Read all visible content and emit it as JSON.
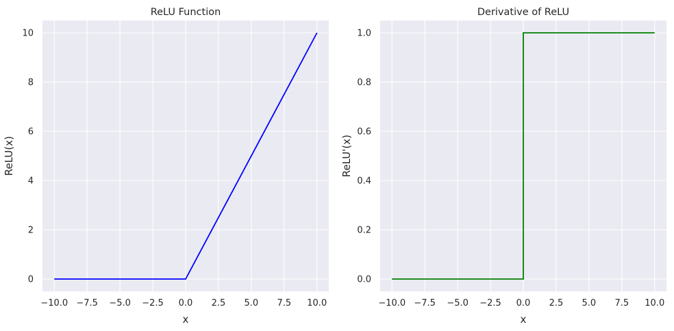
{
  "chart_data": [
    {
      "type": "line",
      "title": "ReLU Function",
      "xlabel": "x",
      "ylabel": "ReLU(x)",
      "xlim": [
        -10.9,
        10.9
      ],
      "ylim": [
        -0.5,
        10.5
      ],
      "xticks": [
        -10.0,
        -7.5,
        -5.0,
        -2.5,
        0.0,
        2.5,
        5.0,
        7.5,
        10.0
      ],
      "xtick_labels": [
        "−10.0",
        "−7.5",
        "−5.0",
        "−2.5",
        "0.0",
        "2.5",
        "5.0",
        "7.5",
        "10.0"
      ],
      "yticks": [
        0,
        2,
        4,
        6,
        8,
        10
      ],
      "ytick_labels": [
        "0",
        "2",
        "4",
        "6",
        "8",
        "10"
      ],
      "grid": true,
      "background": "#eaeaf2",
      "series": [
        {
          "color": "#0000ff",
          "x": [
            -10,
            0,
            10
          ],
          "y": [
            0,
            0,
            10
          ]
        }
      ]
    },
    {
      "type": "line",
      "title": "Derivative of ReLU",
      "xlabel": "x",
      "ylabel": "ReLU'(x)",
      "xlim": [
        -10.9,
        10.9
      ],
      "ylim": [
        -0.05,
        1.05
      ],
      "xticks": [
        -10.0,
        -7.5,
        -5.0,
        -2.5,
        0.0,
        2.5,
        5.0,
        7.5,
        10.0
      ],
      "xtick_labels": [
        "−10.0",
        "−7.5",
        "−5.0",
        "−2.5",
        "0.0",
        "2.5",
        "5.0",
        "7.5",
        "10.0"
      ],
      "yticks": [
        0.0,
        0.2,
        0.4,
        0.6,
        0.8,
        1.0
      ],
      "ytick_labels": [
        "0.0",
        "0.2",
        "0.4",
        "0.6",
        "0.8",
        "1.0"
      ],
      "grid": true,
      "background": "#eaeaf2",
      "series": [
        {
          "color": "#008000",
          "x": [
            -10,
            0,
            0,
            10
          ],
          "y": [
            0,
            0,
            1,
            1
          ]
        }
      ]
    }
  ]
}
